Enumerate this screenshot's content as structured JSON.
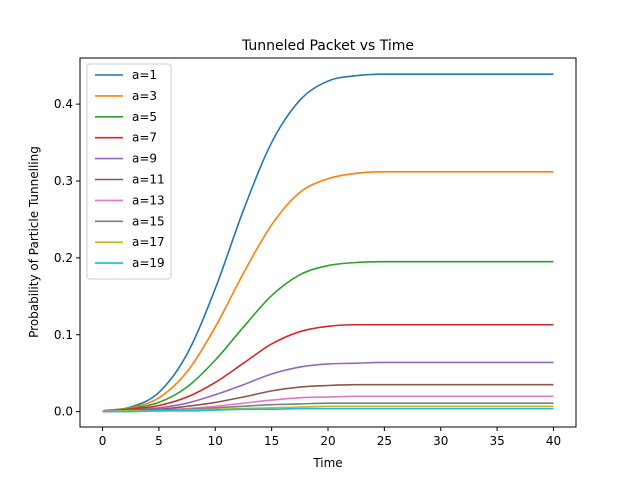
{
  "chart_data": {
    "type": "line",
    "title": "Tunneled Packet vs Time",
    "xlabel": "Time",
    "ylabel": "Probability of Particle Tunnelling",
    "xlim": [
      -2,
      42
    ],
    "ylim": [
      -0.02,
      0.46
    ],
    "x_ticks": [
      0,
      5,
      10,
      15,
      20,
      25,
      30,
      35,
      40
    ],
    "y_ticks": [
      0.0,
      0.1,
      0.2,
      0.3,
      0.4
    ],
    "grid": false,
    "legend_position": "upper-left",
    "x": [
      0,
      2.5,
      5,
      7.5,
      10,
      12.5,
      15,
      17.5,
      20,
      22.5,
      25,
      27.5,
      30,
      32.5,
      35,
      37.5,
      40
    ],
    "series": [
      {
        "name": "a=1",
        "color": "#1f77b4",
        "values": [
          0.001,
          0.006,
          0.025,
          0.075,
          0.16,
          0.262,
          0.35,
          0.405,
          0.43,
          0.437,
          0.439,
          0.439,
          0.439,
          0.439,
          0.439,
          0.439,
          0.439
        ]
      },
      {
        "name": "a=3",
        "color": "#ff7f0e",
        "values": [
          0.001,
          0.005,
          0.018,
          0.052,
          0.11,
          0.18,
          0.243,
          0.285,
          0.303,
          0.31,
          0.312,
          0.312,
          0.312,
          0.312,
          0.312,
          0.312,
          0.312
        ]
      },
      {
        "name": "a=5",
        "color": "#2ca02c",
        "values": [
          0.001,
          0.004,
          0.012,
          0.032,
          0.067,
          0.11,
          0.151,
          0.178,
          0.19,
          0.194,
          0.195,
          0.195,
          0.195,
          0.195,
          0.195,
          0.195,
          0.195
        ]
      },
      {
        "name": "a=7",
        "color": "#d62728",
        "values": [
          0.001,
          0.003,
          0.008,
          0.019,
          0.038,
          0.063,
          0.088,
          0.104,
          0.111,
          0.113,
          0.113,
          0.113,
          0.113,
          0.113,
          0.113,
          0.113,
          0.113
        ]
      },
      {
        "name": "a=9",
        "color": "#9467bd",
        "values": [
          0.001,
          0.002,
          0.005,
          0.011,
          0.022,
          0.035,
          0.049,
          0.058,
          0.062,
          0.063,
          0.064,
          0.064,
          0.064,
          0.064,
          0.064,
          0.064,
          0.064
        ]
      },
      {
        "name": "a=11",
        "color": "#8c564b",
        "values": [
          0.001,
          0.002,
          0.003,
          0.007,
          0.012,
          0.019,
          0.027,
          0.032,
          0.034,
          0.035,
          0.035,
          0.035,
          0.035,
          0.035,
          0.035,
          0.035,
          0.035
        ]
      },
      {
        "name": "a=13",
        "color": "#e377c2",
        "values": [
          0.001,
          0.001,
          0.002,
          0.004,
          0.007,
          0.011,
          0.015,
          0.018,
          0.019,
          0.02,
          0.02,
          0.02,
          0.02,
          0.02,
          0.02,
          0.02,
          0.02
        ]
      },
      {
        "name": "a=15",
        "color": "#7f7f7f",
        "values": [
          0.0,
          0.001,
          0.002,
          0.003,
          0.005,
          0.007,
          0.009,
          0.01,
          0.011,
          0.011,
          0.011,
          0.011,
          0.011,
          0.011,
          0.011,
          0.011,
          0.011
        ]
      },
      {
        "name": "a=17",
        "color": "#bcbd22",
        "values": [
          0.0,
          0.001,
          0.001,
          0.002,
          0.003,
          0.004,
          0.005,
          0.006,
          0.007,
          0.007,
          0.007,
          0.007,
          0.007,
          0.007,
          0.007,
          0.007,
          0.007
        ]
      },
      {
        "name": "a=19",
        "color": "#17becf",
        "values": [
          0.0,
          0.0,
          0.001,
          0.001,
          0.002,
          0.003,
          0.003,
          0.004,
          0.004,
          0.004,
          0.004,
          0.004,
          0.004,
          0.004,
          0.004,
          0.004,
          0.004
        ]
      }
    ]
  }
}
